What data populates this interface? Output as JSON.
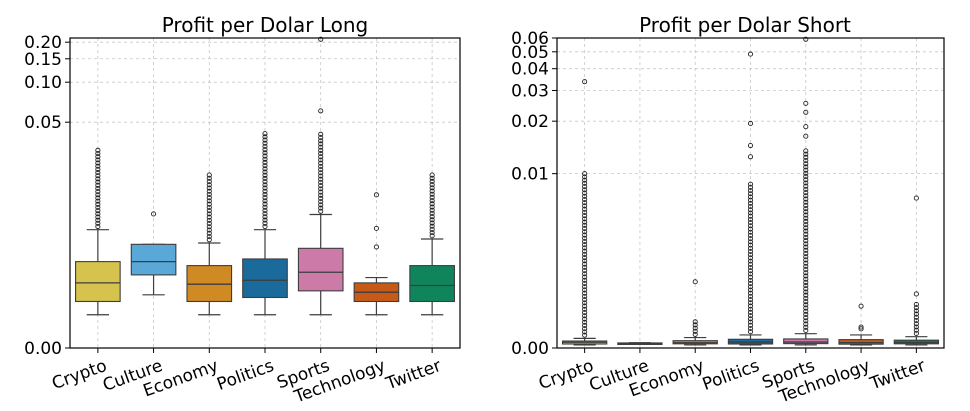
{
  "chart_data": [
    {
      "type": "boxplot",
      "title": "Profit per Dolar Long",
      "xlabel": "",
      "ylabel": "",
      "ylim": [
        0,
        0.215
      ],
      "yticks": [
        "0.00",
        "0.05",
        "0.10",
        "0.15",
        "0.20"
      ],
      "grid": true,
      "categories": [
        "Crypto",
        "Culture",
        "Economy",
        "Politics",
        "Sports",
        "Technology",
        "Twitter"
      ],
      "colors": [
        "#d5c34e",
        "#5aa8d8",
        "#d08a23",
        "#1a6a9c",
        "#cc7aa7",
        "#c85a19",
        "#10855c"
      ],
      "boxes": [
        {
          "min": 0.0025,
          "q1": 0.0035,
          "median": 0.0049,
          "q3": 0.0065,
          "max": 0.0089,
          "fliers_to": 0.0307
        },
        {
          "min": 0.004,
          "q1": 0.0055,
          "median": 0.0065,
          "q3": 0.0078,
          "max": 0.0078,
          "outliers": [
            0.0102
          ]
        },
        {
          "min": 0.0025,
          "q1": 0.0035,
          "median": 0.0048,
          "q3": 0.0062,
          "max": 0.0079,
          "fliers_to": 0.02
        },
        {
          "min": 0.0025,
          "q1": 0.0038,
          "median": 0.0051,
          "q3": 0.0067,
          "max": 0.0089,
          "fliers_to": 0.041
        },
        {
          "min": 0.0025,
          "q1": 0.0043,
          "median": 0.0057,
          "q3": 0.0075,
          "max": 0.0101,
          "fliers_to": 0.0405,
          "outliers": [
            0.0608,
            0.2102
          ]
        },
        {
          "min": 0.0025,
          "q1": 0.0035,
          "median": 0.0042,
          "q3": 0.0049,
          "max": 0.0053,
          "outliers": [
            0.0076,
            0.009,
            0.0142
          ]
        },
        {
          "min": 0.0025,
          "q1": 0.0035,
          "median": 0.0047,
          "q3": 0.0062,
          "max": 0.0082,
          "fliers_to": 0.02
        }
      ]
    },
    {
      "type": "boxplot",
      "title": "Profit per Dolar Short",
      "xlabel": "",
      "ylabel": "",
      "ylim": [
        0,
        0.06
      ],
      "yticks": [
        "0.00",
        "0.01",
        "0.02",
        "0.03",
        "0.04",
        "0.05",
        "0.06"
      ],
      "grid": true,
      "categories": [
        "Crypto",
        "Culture",
        "Economy",
        "Politics",
        "Sports",
        "Technology",
        "Twitter"
      ],
      "colors": [
        "#d5c34e",
        "#5aa8d8",
        "#d08a23",
        "#1a6a9c",
        "#cc7aa7",
        "#c85a19",
        "#10855c"
      ],
      "boxes": [
        {
          "min": 0.00018,
          "q1": 0.00023,
          "median": 0.00033,
          "q3": 0.0004,
          "max": 0.00055,
          "fliers_to": 0.01,
          "outliers": [
            0.0337
          ]
        },
        {
          "min": 0.00025,
          "q1": 0.00026,
          "median": 0.00027,
          "q3": 0.00029,
          "max": 0.0003
        },
        {
          "min": 0.00018,
          "q1": 0.00024,
          "median": 0.0003,
          "q3": 0.00042,
          "max": 0.0006,
          "fliers_to": 0.0015,
          "outliers": [
            0.0038
          ]
        },
        {
          "min": 0.00018,
          "q1": 0.00023,
          "median": 0.00034,
          "q3": 0.0005,
          "max": 0.00075,
          "fliers_to": 0.0094,
          "outliers": [
            0.0125,
            0.0145,
            0.0194,
            0.0485
          ]
        },
        {
          "min": 0.00018,
          "q1": 0.00025,
          "median": 0.00034,
          "q3": 0.00052,
          "max": 0.00082,
          "fliers_to": 0.0135,
          "outliers": [
            0.0164,
            0.0186,
            0.0225,
            0.0253,
            0.059
          ]
        },
        {
          "min": 0.00018,
          "q1": 0.00022,
          "median": 0.00031,
          "q3": 0.00048,
          "max": 0.00075,
          "outliers": [
            0.0011,
            0.0012,
            0.0024
          ]
        },
        {
          "min": 0.00018,
          "q1": 0.00024,
          "median": 0.00032,
          "q3": 0.00045,
          "max": 0.00065,
          "fliers_to": 0.0025,
          "outliers": [
            0.0031,
            0.0086
          ]
        }
      ]
    }
  ]
}
